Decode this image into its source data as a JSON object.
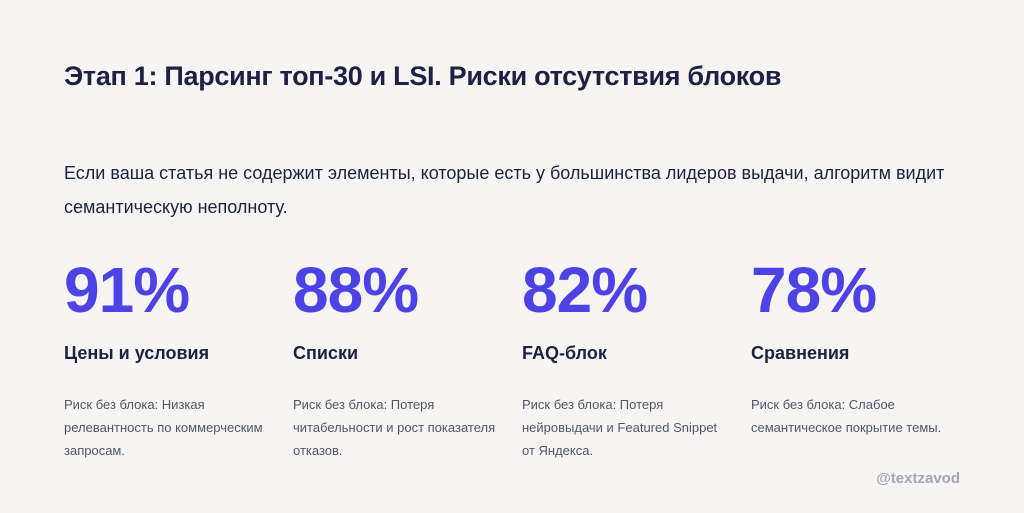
{
  "title": "Этап 1: Парсинг топ-30 и LSI. Риски отсутствия блоков",
  "intro": "Если ваша статья не содержит элементы, которые есть у большинства лидеров выдачи, алгоритм видит семантическую неполноту.",
  "stats": [
    {
      "value": "91%",
      "label": "Цены и условия",
      "desc": "Риск без блока: Низкая релевантность по коммерческим запросам."
    },
    {
      "value": "88%",
      "label": "Списки",
      "desc": "Риск без блока: Потеря читабельности и рост показателя отказов."
    },
    {
      "value": "82%",
      "label": "FAQ-блок",
      "desc": "Риск без блока: Потеря нейровыдачи и Featured Snippet от Яндекса."
    },
    {
      "value": "78%",
      "label": "Сравнения",
      "desc": "Риск без блока: Слабое семантическое покрытие темы."
    }
  ],
  "handle": "@textzavod",
  "colors": {
    "background": "#f6f5f3",
    "accent": "#4c42e6",
    "text": "#1d2142",
    "muted": "#52566a"
  }
}
